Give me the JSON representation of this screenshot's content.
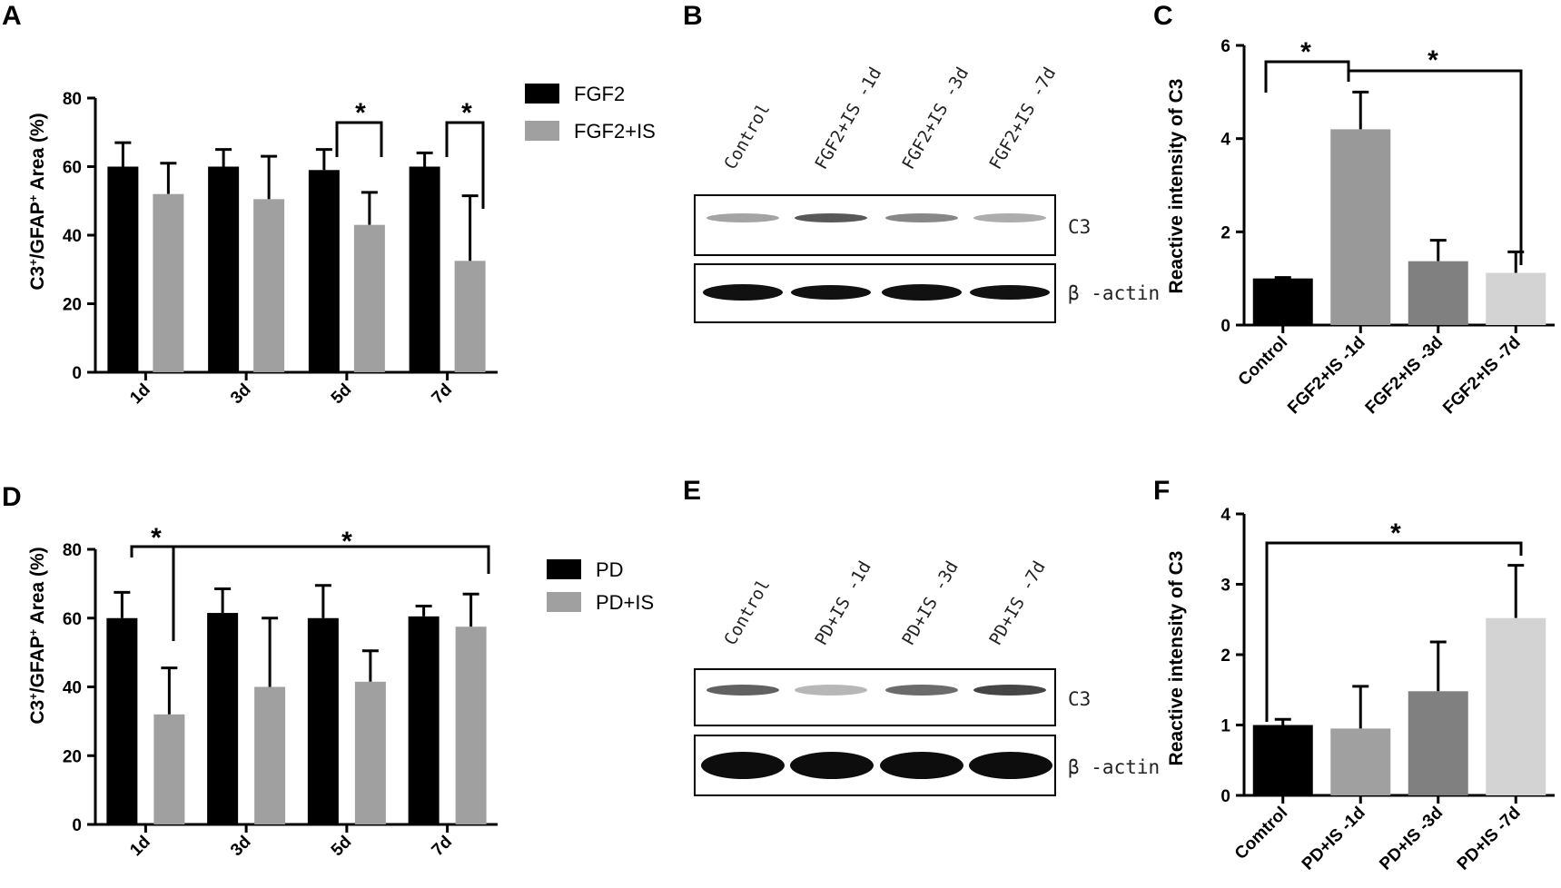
{
  "chart_data": [
    {
      "id": "A",
      "panel": "A",
      "type": "bar",
      "categories": [
        "1d",
        "3d",
        "5d",
        "7d"
      ],
      "series": [
        {
          "name": "FGF2",
          "values": [
            60,
            60,
            59,
            60
          ],
          "errors": [
            7,
            5,
            6,
            4
          ],
          "color": "#000000"
        },
        {
          "name": "FGF2+IS",
          "values": [
            52,
            50.5,
            43,
            32.5
          ],
          "errors": [
            9,
            12.5,
            9.5,
            19
          ],
          "color": "#a0a0a0"
        }
      ],
      "ylabel_parts": [
        "C3",
        "+",
        "/GFAP",
        "+",
        " Area (%)"
      ],
      "yticks": [
        "0",
        "20",
        "40",
        "60",
        "80"
      ],
      "ylim": [
        0,
        80
      ],
      "legend": "right",
      "annotations": [
        "*",
        "*"
      ]
    },
    {
      "id": "C",
      "panel": "C",
      "type": "bar",
      "categories": [
        "Control",
        "FGF2+IS -1d",
        "FGF2+IS -3d",
        "FGF2+IS -7d"
      ],
      "series": [
        {
          "values": [
            1.0,
            4.2,
            1.37,
            1.12
          ],
          "errors": [
            0.02,
            0.8,
            0.45,
            0.45
          ],
          "colors": [
            "#000000",
            "#999999",
            "#808080",
            "#d3d3d3"
          ]
        }
      ],
      "ylabel": "Reactive intensity of C3",
      "yticks": [
        "0",
        "2",
        "4",
        "6"
      ],
      "ylim": [
        0,
        6
      ],
      "annotations": [
        "*",
        "*"
      ]
    },
    {
      "id": "D",
      "panel": "D",
      "type": "bar",
      "categories": [
        "1d",
        "3d",
        "5d",
        "7d"
      ],
      "series": [
        {
          "name": "PD",
          "values": [
            60,
            61.5,
            60,
            60.5
          ],
          "errors": [
            7.5,
            7,
            9.5,
            3
          ],
          "color": "#000000"
        },
        {
          "name": "PD+IS",
          "values": [
            32,
            40,
            41.5,
            57.5
          ],
          "errors": [
            13.5,
            20,
            9,
            9.5
          ],
          "color": "#a0a0a0"
        }
      ],
      "ylabel_parts": [
        "C3",
        "+",
        "/GFAP",
        "+",
        " Area (%)"
      ],
      "yticks": [
        "0",
        "20",
        "40",
        "60",
        "80"
      ],
      "ylim": [
        0,
        80
      ],
      "legend": "right",
      "annotations": [
        "*",
        "*"
      ]
    },
    {
      "id": "F",
      "panel": "F",
      "type": "bar",
      "categories": [
        "Comtrol",
        "PD+IS -1d",
        "PD+IS -3d",
        "PD+IS -7d"
      ],
      "series": [
        {
          "values": [
            1.0,
            0.95,
            1.48,
            2.52
          ],
          "errors": [
            0.08,
            0.6,
            0.7,
            0.75
          ],
          "colors": [
            "#000000",
            "#a0a0a0",
            "#808080",
            "#d3d3d3"
          ]
        }
      ],
      "ylabel": "Reactive intensity of C3",
      "yticks": [
        "0",
        "1",
        "2",
        "3",
        "4"
      ],
      "ylim": [
        0,
        4
      ],
      "annotations": [
        "*"
      ]
    }
  ],
  "blots": [
    {
      "panel": "B",
      "lanes": [
        "Control",
        "FGF2+IS -1d",
        "FGF2+IS -3d",
        "FGF2+IS -7d"
      ],
      "bands": [
        "C3",
        "β -actin"
      ],
      "c3_intensity": [
        0.35,
        0.75,
        0.5,
        0.3
      ]
    },
    {
      "panel": "E",
      "lanes": [
        "Control",
        "PD+IS -1d",
        "PD+IS -3d",
        "PD+IS -7d"
      ],
      "bands": [
        "C3",
        "β -actin"
      ],
      "c3_intensity": [
        0.7,
        0.25,
        0.65,
        0.85
      ]
    }
  ]
}
